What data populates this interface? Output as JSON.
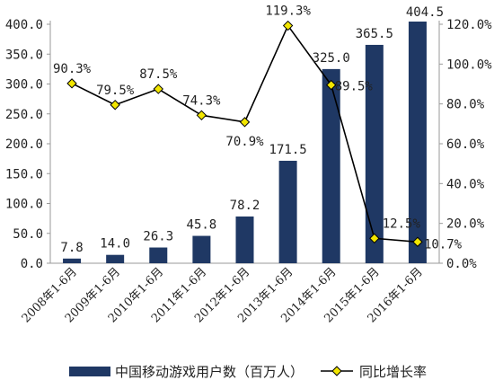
{
  "chart_data": {
    "type": "bar+line",
    "categories": [
      "2008年1-6月",
      "2009年1-6月",
      "2010年1-6月",
      "2011年1-6月",
      "2012年1-6月",
      "2013年1-6月",
      "2014年1-6月",
      "2015年1-6月",
      "2016年1-6月"
    ],
    "series": [
      {
        "name": "中国移动游戏用户数（百万人）",
        "type": "bar",
        "axis": "left",
        "color": "#1f3864",
        "values": [
          7.8,
          14.0,
          26.3,
          45.8,
          78.2,
          171.5,
          325.0,
          365.5,
          404.5
        ],
        "labels": [
          "7.8",
          "14.0",
          "26.3",
          "45.8",
          "78.2",
          "171.5",
          "325.0",
          "365.5",
          "404.5"
        ]
      },
      {
        "name": "同比增长率",
        "type": "line",
        "axis": "right",
        "color": "#000000",
        "marker_color": "#f2e600",
        "values": [
          90.3,
          79.5,
          87.5,
          74.3,
          70.9,
          119.3,
          89.5,
          12.5,
          10.7
        ],
        "labels": [
          "90.3%",
          "79.5%",
          "87.5%",
          "74.3%",
          "70.9%",
          "119.3%",
          "89.5%",
          "12.5%",
          "10.7%"
        ]
      }
    ],
    "y_left": {
      "ylim": [
        0,
        400
      ],
      "ticks": [
        "0.0",
        "50.0",
        "100.0",
        "150.0",
        "200.0",
        "250.0",
        "300.0",
        "350.0",
        "400.0"
      ]
    },
    "y_right": {
      "ylim": [
        0,
        120
      ],
      "ticks": [
        "0.0%",
        "20.0%",
        "40.0%",
        "60.0%",
        "80.0%",
        "100.0%",
        "120.0%"
      ]
    },
    "grid": false,
    "legend": "bottom"
  }
}
